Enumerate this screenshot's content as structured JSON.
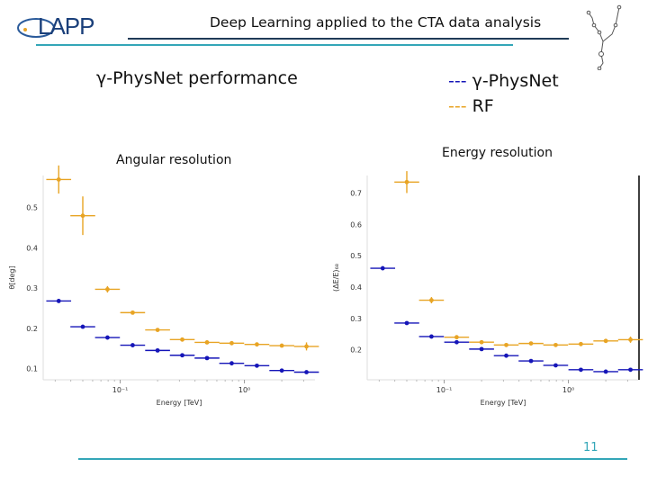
{
  "header": {
    "logo_text": "LAPP",
    "title": "Deep Learning applied to the CTA data analysis"
  },
  "heading": "γ-PhysNet performance",
  "legend": [
    {
      "dash": "---",
      "label": "γ-PhysNet",
      "color": "#1515b8"
    },
    {
      "dash": "---",
      "label": "RF",
      "color": "#e8a424"
    }
  ],
  "page_number": "11",
  "colors": {
    "accent": "#33a6b8",
    "physnet": "#1515b8",
    "rf": "#e8a424"
  },
  "chart_data": [
    {
      "type": "scatter",
      "title": "Angular resolution",
      "xlabel": "Energy [TeV]",
      "ylabel": "θ[deg]",
      "xscale": "log",
      "xlim": [
        0.024,
        3.7
      ],
      "ylim": [
        0.072,
        0.58
      ],
      "xticks": [
        {
          "value": 0.1,
          "label": "10⁻¹"
        },
        {
          "value": 1,
          "label": "10⁰"
        }
      ],
      "yticks": [
        {
          "value": 0.1,
          "label": "0.1"
        },
        {
          "value": 0.2,
          "label": "0.2"
        },
        {
          "value": 0.3,
          "label": "0.3"
        },
        {
          "value": 0.4,
          "label": "0.4"
        },
        {
          "value": 0.5,
          "label": "0.5"
        }
      ],
      "grid": false,
      "x": [
        0.032,
        0.05,
        0.079,
        0.126,
        0.2,
        0.316,
        0.5,
        0.79,
        1.26,
        2.0,
        3.16
      ],
      "xbin_halfwidth_dex": 0.1,
      "series": [
        {
          "name": "RF",
          "color": "#e8a424",
          "x": [
            0.032,
            0.05,
            0.079,
            0.126,
            0.2,
            0.316,
            0.5,
            0.79,
            1.26,
            2.0,
            3.16
          ],
          "values": [
            0.57,
            0.48,
            0.297,
            0.239,
            0.196,
            0.172,
            0.165,
            0.163,
            0.16,
            0.157,
            0.155
          ],
          "yerr": [
            0.035,
            0.048,
            0.008,
            0.004,
            0.004,
            0.003,
            0.003,
            0.003,
            0.003,
            0.004,
            0.01
          ]
        },
        {
          "name": "γ-PhysNet",
          "color": "#1515b8",
          "x": [
            0.032,
            0.05,
            0.079,
            0.126,
            0.2,
            0.316,
            0.5,
            0.79,
            1.26,
            2.0,
            3.16
          ],
          "values": [
            0.268,
            0.204,
            0.177,
            0.158,
            0.145,
            0.133,
            0.126,
            0.113,
            0.107,
            0.095,
            0.091
          ],
          "yerr": [
            0.003,
            0.002,
            0.002,
            0.002,
            0.002,
            0.002,
            0.002,
            0.002,
            0.002,
            0.002,
            0.002
          ]
        }
      ]
    },
    {
      "type": "scatter",
      "title": "Energy resolution",
      "xlabel": "Energy [TeV]",
      "ylabel": "(ΔE/E)₆₈",
      "xscale": "log",
      "xlim": [
        0.024,
        3.7
      ],
      "ylim": [
        0.104,
        0.756
      ],
      "xticks": [
        {
          "value": 0.1,
          "label": "10⁻¹"
        },
        {
          "value": 1,
          "label": "10⁰"
        }
      ],
      "yticks": [
        {
          "value": 0.2,
          "label": "0.2"
        },
        {
          "value": 0.3,
          "label": "0.3"
        },
        {
          "value": 0.4,
          "label": "0.4"
        },
        {
          "value": 0.5,
          "label": "0.5"
        },
        {
          "value": 0.6,
          "label": "0.6"
        },
        {
          "value": 0.7,
          "label": "0.7"
        }
      ],
      "grid": false,
      "xbin_halfwidth_dex": 0.1,
      "series": [
        {
          "name": "RF",
          "color": "#e8a424",
          "x": [
            0.05,
            0.079,
            0.126,
            0.2,
            0.316,
            0.5,
            0.79,
            1.26,
            2.0,
            3.16
          ],
          "values": [
            0.735,
            0.358,
            0.24,
            0.224,
            0.215,
            0.22,
            0.215,
            0.218,
            0.228,
            0.232
          ],
          "yerr": [
            0.035,
            0.01,
            0.004,
            0.004,
            0.004,
            0.004,
            0.004,
            0.004,
            0.005,
            0.01
          ]
        },
        {
          "name": "γ-PhysNet",
          "color": "#1515b8",
          "x": [
            0.032,
            0.05,
            0.079,
            0.126,
            0.2,
            0.316,
            0.5,
            0.79,
            1.26,
            2.0,
            3.16
          ],
          "values": [
            0.46,
            0.285,
            0.242,
            0.224,
            0.202,
            0.181,
            0.164,
            0.15,
            0.136,
            0.13,
            0.136
          ],
          "yerr": [
            0.004,
            0.003,
            0.003,
            0.003,
            0.002,
            0.002,
            0.002,
            0.002,
            0.002,
            0.002,
            0.002
          ]
        }
      ]
    }
  ]
}
